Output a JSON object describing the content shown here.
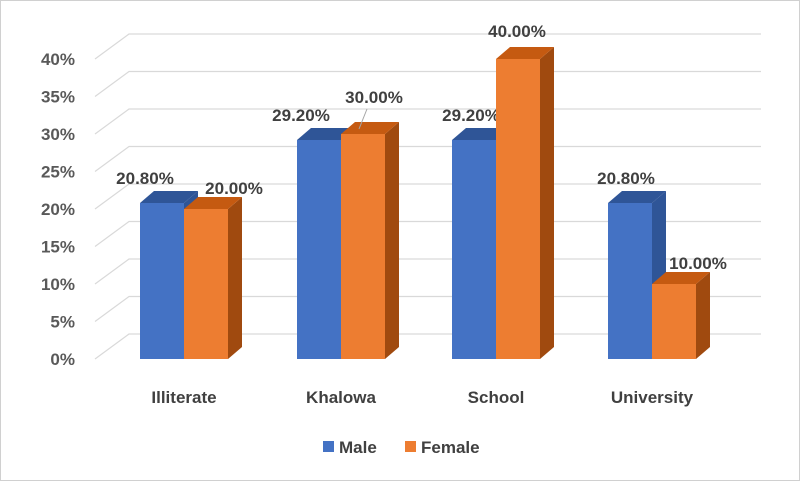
{
  "chart_data": {
    "type": "bar",
    "categories": [
      "Illiterate",
      "Khalowa",
      "School",
      "University"
    ],
    "series": [
      {
        "name": "Male",
        "values": [
          20.8,
          29.2,
          29.2,
          20.8
        ],
        "labels": [
          "20.80%",
          "29.20%",
          "29.20%",
          "20.80%"
        ]
      },
      {
        "name": "Female",
        "values": [
          20.0,
          30.0,
          40.0,
          10.0
        ],
        "labels": [
          "20.00%",
          "30.00%",
          "40.00%",
          "10.00%"
        ]
      }
    ],
    "y_ticks": [
      "0%",
      "5%",
      "10%",
      "15%",
      "20%",
      "25%",
      "30%",
      "35%",
      "40%"
    ],
    "ylim": [
      0,
      40
    ],
    "grid": true,
    "legend": "bottom",
    "colors": {
      "Male": "#4472c4",
      "Male_top": "#2f5597",
      "Male_side": "#2f5597",
      "Female": "#ed7d31",
      "Female_top": "#c55a11",
      "Female_side": "#a04a0f",
      "grid": "#d9d9d9"
    }
  }
}
